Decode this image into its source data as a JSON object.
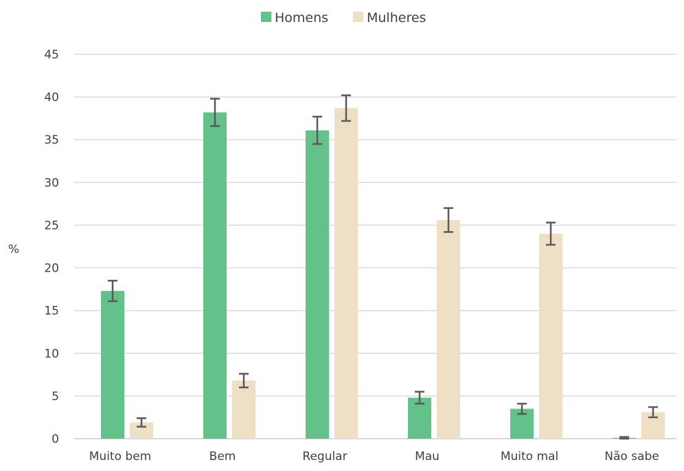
{
  "chart_data": {
    "type": "bar",
    "title": "",
    "xlabel": "",
    "ylabel": "%",
    "ylim": [
      0,
      45
    ],
    "yticks": [
      0,
      5,
      10,
      15,
      20,
      25,
      30,
      35,
      40,
      45
    ],
    "grid": true,
    "legend_position": "top-center",
    "categories": [
      "Muito bem",
      "Bem",
      "Regular",
      "Mau",
      "Muito mal",
      "Não sabe"
    ],
    "series": [
      {
        "name": "Homens",
        "color": "#63c18a",
        "values": [
          17.3,
          38.2,
          36.1,
          4.8,
          3.5,
          0.1
        ],
        "error_low": [
          16.1,
          36.6,
          34.5,
          4.1,
          2.9,
          0.0
        ],
        "error_high": [
          18.5,
          39.8,
          37.7,
          5.5,
          4.1,
          0.2
        ]
      },
      {
        "name": "Mulheres",
        "color": "#ede0c4",
        "values": [
          1.9,
          6.8,
          38.7,
          25.6,
          24.0,
          3.1
        ],
        "error_low": [
          1.4,
          6.0,
          37.2,
          24.2,
          22.7,
          2.5
        ],
        "error_high": [
          2.4,
          7.6,
          40.2,
          27.0,
          25.3,
          3.7
        ]
      }
    ]
  }
}
